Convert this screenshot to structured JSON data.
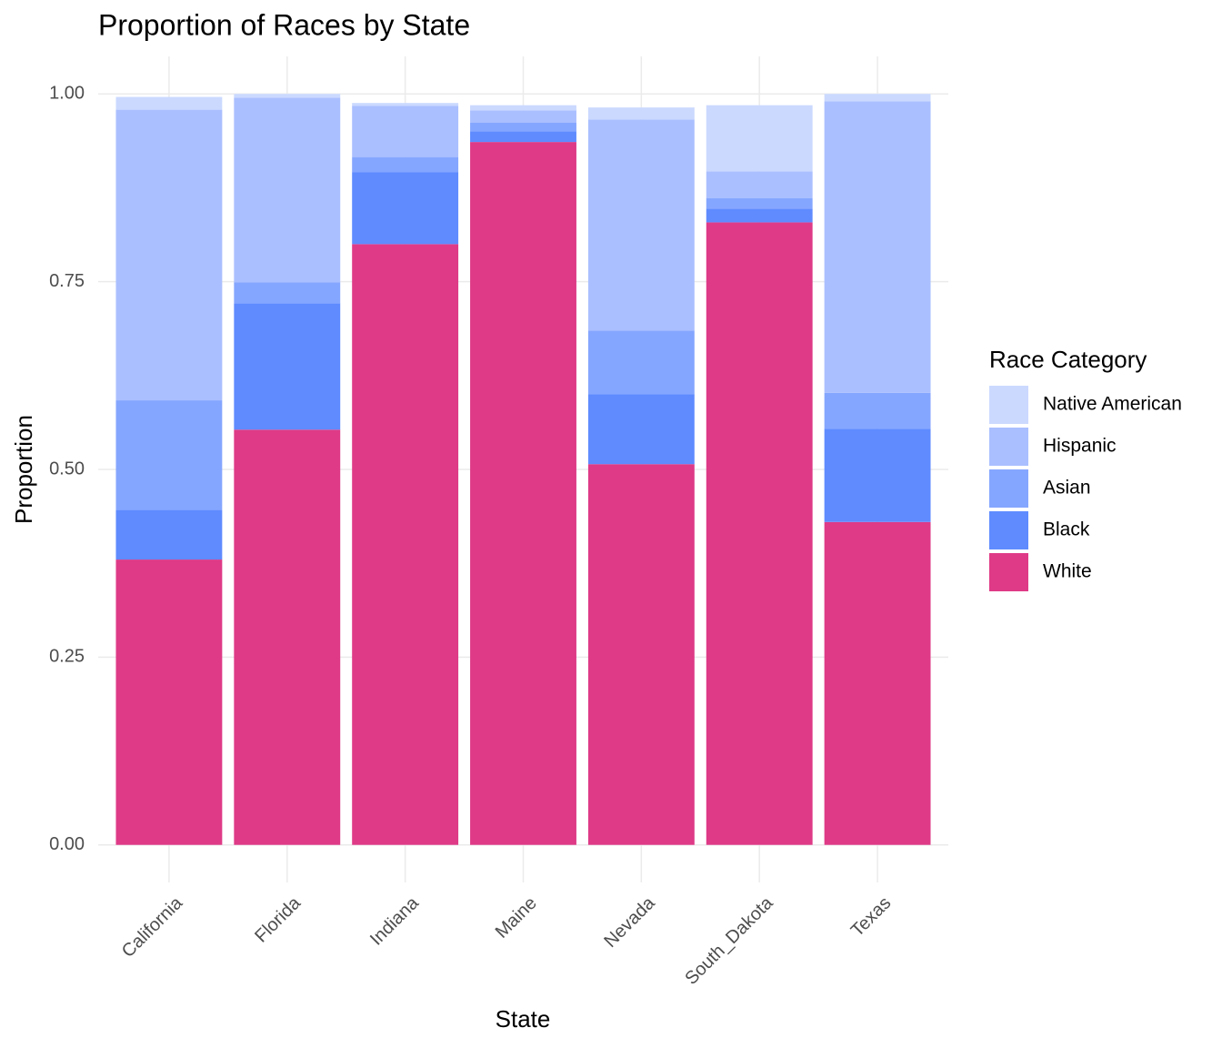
{
  "chart_data": {
    "type": "stacked_bar",
    "title": "Proportion of Races by State",
    "x_label": "State",
    "y_label": "Proportion",
    "legend_title": "Race Category",
    "categories": [
      "California",
      "Florida",
      "Indiana",
      "Maine",
      "Nevada",
      "South_Dakota",
      "Texas"
    ],
    "series": [
      {
        "name": "White",
        "color": "#de3a87",
        "values": [
          0.38,
          0.553,
          0.8,
          0.936,
          0.507,
          0.829,
          0.43
        ]
      },
      {
        "name": "Black",
        "color": "#5f8bff",
        "values": [
          0.066,
          0.168,
          0.096,
          0.014,
          0.093,
          0.018,
          0.124
        ]
      },
      {
        "name": "Asian",
        "color": "#85a6ff",
        "values": [
          0.146,
          0.028,
          0.02,
          0.012,
          0.085,
          0.014,
          0.048
        ]
      },
      {
        "name": "Hispanic",
        "color": "#aabfff",
        "values": [
          0.387,
          0.246,
          0.068,
          0.016,
          0.281,
          0.036,
          0.388
        ]
      },
      {
        "name": "Native American",
        "color": "#cbd9ff",
        "values": [
          0.017,
          0.005,
          0.004,
          0.007,
          0.016,
          0.088,
          0.01
        ]
      }
    ],
    "ylim": [
      -0.05,
      1.05
    ],
    "yticks": [
      {
        "value": 0,
        "label": "0.00"
      },
      0.25,
      {
        "value": 0.5,
        "label": "0.50"
      },
      0.75,
      {
        "value": 1,
        "label": "1.00"
      }
    ],
    "grid": true,
    "legend_position": "right"
  }
}
